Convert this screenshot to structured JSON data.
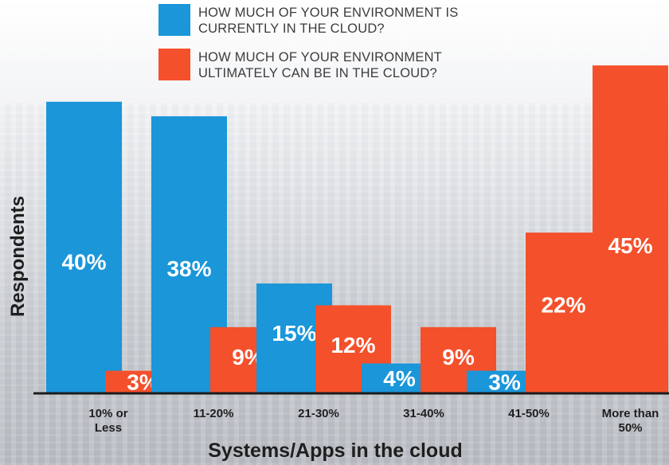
{
  "chart_data": {
    "type": "bar",
    "categories": [
      "10% or Less",
      "11-20%",
      "21-30%",
      "31-40%",
      "41-50%",
      "More than 50%"
    ],
    "category_lines": [
      [
        "10% or",
        "Less"
      ],
      [
        "11-20%"
      ],
      [
        "21-30%"
      ],
      [
        "31-40%"
      ],
      [
        "41-50%"
      ],
      [
        "More than",
        "50%"
      ]
    ],
    "series": [
      {
        "name": "HOW MUCH OF YOUR ENVIRONMENT IS CURRENTLY IN THE CLOUD?",
        "name_lines": [
          "HOW MUCH OF YOUR ENVIRONMENT IS",
          "CURRENTLY IN THE CLOUD?"
        ],
        "color": "#1a96d9",
        "values": [
          40,
          38,
          15,
          4,
          3,
          null
        ],
        "labels": [
          "40%",
          "38%",
          "15%",
          "4%",
          "3%",
          ""
        ]
      },
      {
        "name": "HOW MUCH OF YOUR ENVIRONMENT ULTIMATELY CAN BE IN THE CLOUD?",
        "name_lines": [
          "HOW MUCH OF YOUR ENVIRONMENT",
          "ULTIMATELY CAN BE IN THE CLOUD?"
        ],
        "color": "#f4502b",
        "values": [
          3,
          9,
          12,
          9,
          22,
          45
        ],
        "labels": [
          "3%",
          "9%",
          "12%",
          "9%",
          "22%",
          "45%"
        ]
      }
    ],
    "xlabel": "Systems/Apps in the cloud",
    "ylabel": "Respondents",
    "ylim": [
      0,
      50
    ],
    "grid": false,
    "legend": "top"
  }
}
